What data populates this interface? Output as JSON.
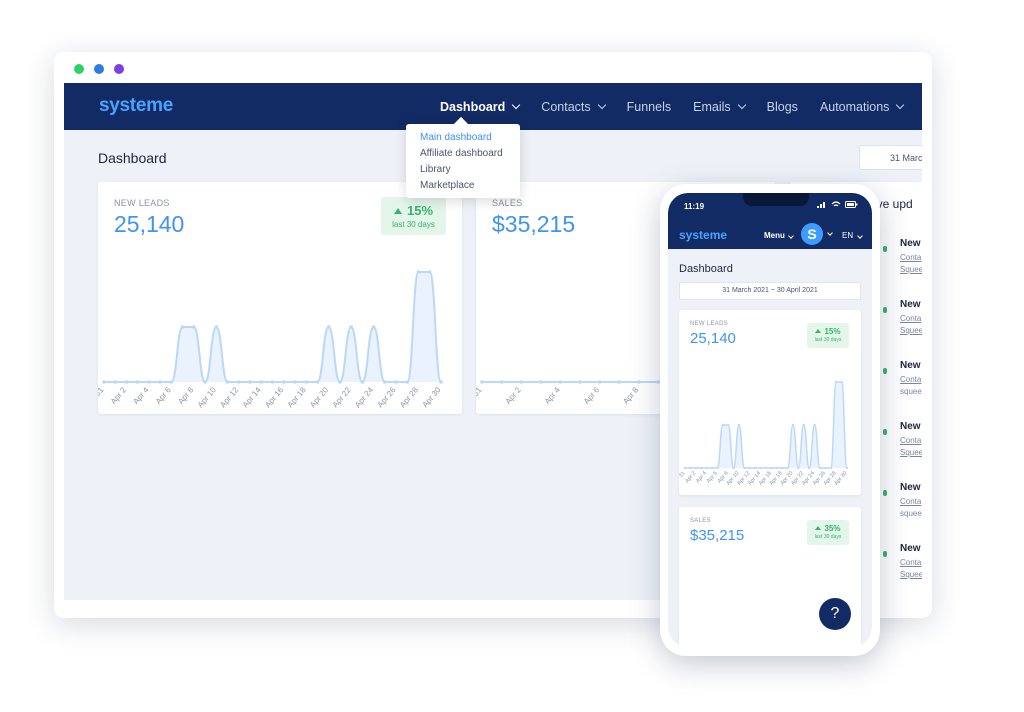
{
  "window": {
    "dot_colors": [
      "#2fcf6e",
      "#2f7de1",
      "#7b3fe4"
    ]
  },
  "desktop": {
    "logo": "systeme",
    "nav": [
      {
        "label": "Dashboard",
        "has_caret": true,
        "active": true
      },
      {
        "label": "Contacts",
        "has_caret": true
      },
      {
        "label": "Funnels",
        "has_caret": false
      },
      {
        "label": "Emails",
        "has_caret": true
      },
      {
        "label": "Blogs",
        "has_caret": false
      },
      {
        "label": "Automations",
        "has_caret": true
      },
      {
        "label": "Pr",
        "has_caret": false
      }
    ],
    "dropdown": [
      "Main dashboard",
      "Affiliate dashboard",
      "Library",
      "Marketplace"
    ],
    "page_title": "Dashboard",
    "date_range": "31 Marc",
    "leads_card": {
      "label": "NEW LEADS",
      "value": "25,140",
      "badge_pct": "15%",
      "badge_sub": "last 30 days"
    },
    "sales_card": {
      "label": "SALES",
      "value": "$35,215"
    },
    "right_panel_title": "ive upd",
    "feed": [
      {
        "title": "New",
        "line1": "Conta",
        "line2": "Squee"
      },
      {
        "title": "New",
        "line1": "Conta",
        "line2": "Squee"
      },
      {
        "title": "New",
        "line1": "Conta",
        "line2": "squee"
      },
      {
        "title": "New",
        "line1": "Conta",
        "line2": "Squee"
      },
      {
        "title": "New",
        "line1": "Conta",
        "line2": "squee"
      },
      {
        "title": "New",
        "line1": "Conta",
        "line2": "Squee"
      }
    ]
  },
  "phone": {
    "time": "11:19",
    "logo": "systeme",
    "menu": "Menu",
    "avatar_letter": "S",
    "lang": "EN",
    "page_title": "Dashboard",
    "date_range": "31 March 2021  ~  30 April 2021",
    "leads_card": {
      "label": "NEW LEADS",
      "value": "25,140",
      "badge_pct": "15%",
      "badge_sub": "last 30 days"
    },
    "sales_card": {
      "label": "SALES",
      "value": "$35,215",
      "badge_pct": "35%",
      "badge_sub": "last 30 days"
    },
    "help": "?"
  },
  "chart_data": [
    {
      "type": "area",
      "title": "NEW LEADS",
      "x": [
        "Mar 31",
        "Apr 1",
        "Apr 2",
        "Apr 3",
        "Apr 4",
        "Apr 5",
        "Apr 6",
        "Apr 7",
        "Apr 8",
        "Apr 9",
        "Apr 10",
        "Apr 11",
        "Apr 12",
        "Apr 13",
        "Apr 14",
        "Apr 15",
        "Apr 16",
        "Apr 17",
        "Apr 18",
        "Apr 19",
        "Apr 20",
        "Apr 21",
        "Apr 22",
        "Apr 23",
        "Apr 24",
        "Apr 25",
        "Apr 26",
        "Apr 27",
        "Apr 28",
        "Apr 29",
        "Apr 30"
      ],
      "x_tick_labels": [
        "31",
        "Apr 2",
        "Apr 4",
        "Apr 6",
        "Apr 8",
        "Apr 10",
        "Apr 12",
        "Apr 14",
        "Apr 16",
        "Apr 18",
        "Apr 20",
        "Apr 22",
        "Apr 24",
        "Apr 26",
        "Apr 28",
        "Apr 30"
      ],
      "values": [
        0,
        0,
        0,
        0,
        0,
        0,
        0,
        1,
        1,
        0,
        1,
        0,
        0,
        0,
        0,
        0,
        0,
        0,
        0,
        0,
        1,
        0,
        1,
        0,
        1,
        0,
        0,
        0,
        2,
        2,
        0
      ],
      "ylim": [
        0,
        2
      ],
      "color": "#bcd8f7",
      "grid": false
    },
    {
      "type": "area",
      "title": "SALES",
      "x_tick_labels": [
        "31",
        "Apr 2",
        "Apr 4",
        "Apr 6",
        "Apr 8",
        "Apr 10",
        "Apr 12",
        "Apr 14"
      ],
      "values": [
        0,
        0,
        0,
        0,
        0,
        0,
        0,
        0,
        0,
        0,
        0,
        0,
        0,
        0,
        0,
        0
      ],
      "ylim": [
        0,
        2
      ],
      "color": "#bcd8f7",
      "grid": false
    }
  ]
}
